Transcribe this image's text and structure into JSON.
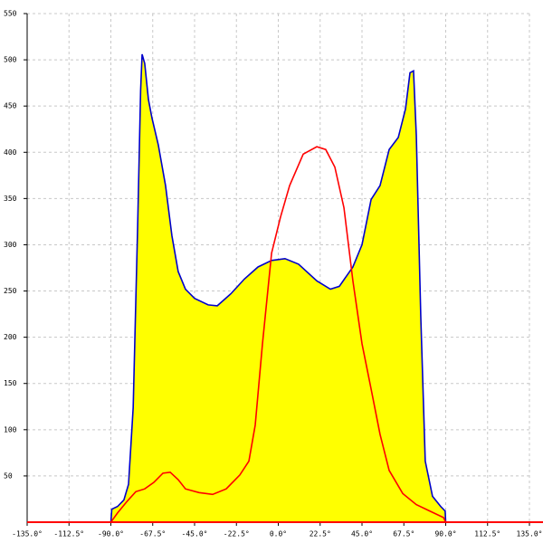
{
  "chart_data": {
    "type": "area",
    "xlim": [
      -135,
      135
    ],
    "ylim": [
      0,
      550
    ],
    "xticks": [
      {
        "value": -135,
        "label": "-135.0°"
      },
      {
        "value": -112.5,
        "label": "-112.5°"
      },
      {
        "value": -90,
        "label": "-90.0°"
      },
      {
        "value": -67.5,
        "label": "-67.5°"
      },
      {
        "value": -45,
        "label": "-45.0°"
      },
      {
        "value": -22.5,
        "label": "-22.5°"
      },
      {
        "value": 0,
        "label": "0.0°"
      },
      {
        "value": 22.5,
        "label": "22.5°"
      },
      {
        "value": 45,
        "label": "45.0°"
      },
      {
        "value": 67.5,
        "label": "67.5°"
      },
      {
        "value": 90,
        "label": "90.0°"
      },
      {
        "value": 112.5,
        "label": "112.5°"
      },
      {
        "value": 135,
        "label": "135.0°"
      }
    ],
    "yticks": [
      50,
      100,
      150,
      200,
      250,
      300,
      350,
      400,
      450,
      500,
      550
    ],
    "grid": true,
    "axis_color": "#ff0000",
    "series": [
      {
        "color": "#0000cc",
        "fill": "#ffff00",
        "x": [
          -90,
          -89.5,
          -86.4,
          -83,
          -80.5,
          -78,
          -75.6,
          -74,
          -73.2,
          -71.8,
          -69.8,
          -67.9,
          -64.5,
          -60.6,
          -57.2,
          -53.8,
          -49.9,
          -45,
          -37.7,
          -32.8,
          -25.5,
          -18.2,
          -10.9,
          -3.6,
          3.6,
          10.9,
          20.7,
          28,
          32.8,
          40.1,
          45,
          49.9,
          54.7,
          59.6,
          64.5,
          68.4,
          70.8,
          72.7,
          74.2,
          76.6,
          79,
          82.9,
          87.3,
          89.7,
          90
        ],
        "values": [
          0,
          14,
          17,
          24,
          41,
          124,
          320,
          467,
          506,
          496,
          457,
          437,
          408,
          364,
          310,
          271,
          252,
          242,
          235,
          234,
          247,
          263,
          276,
          283,
          285,
          279,
          261,
          252,
          255,
          276,
          300,
          349,
          364,
          403,
          416,
          447,
          486,
          488,
          418,
          222,
          66,
          28,
          17,
          12,
          0
        ]
      },
      {
        "color": "#ff0000",
        "x": [
          -90,
          -86.4,
          -81.5,
          -76.6,
          -71.8,
          -66.9,
          -62,
          -58.1,
          -53.8,
          -49.9,
          -42.6,
          -35.3,
          -28,
          -20.7,
          -15.8,
          -12.4,
          -8.5,
          -3.6,
          1.2,
          6.1,
          13.4,
          20.7,
          25.5,
          30.4,
          35.3,
          40.1,
          45,
          49.9,
          54.7,
          59.6,
          66.9,
          74.2,
          81.5,
          88.8,
          90
        ],
        "values": [
          0,
          10,
          22,
          33,
          36,
          43,
          53,
          54,
          46,
          36,
          32,
          30,
          36,
          51,
          66,
          105,
          193,
          291,
          330,
          364,
          398,
          406,
          403,
          384,
          340,
          261,
          193,
          144,
          95,
          56,
          31,
          19,
          12,
          5,
          0
        ]
      }
    ]
  }
}
